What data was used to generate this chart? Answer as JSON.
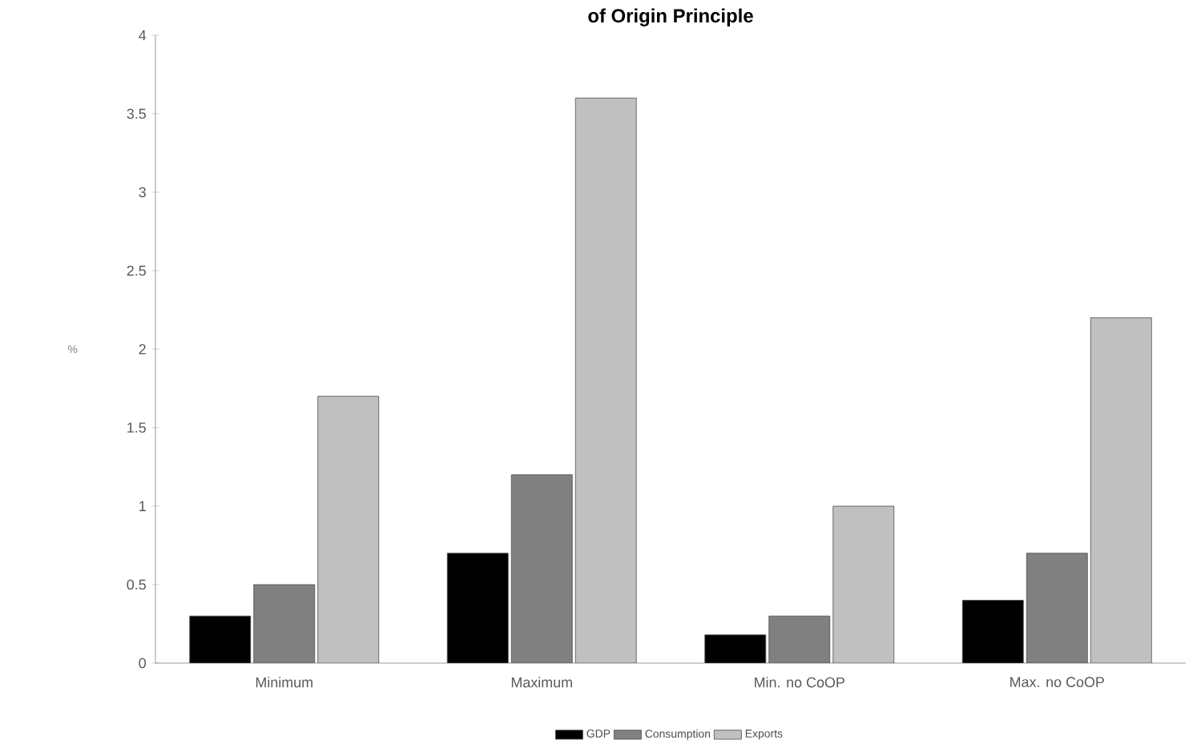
{
  "chart_data": {
    "type": "bar",
    "title": "of Origin Principle",
    "ylabel": "%",
    "categories": [
      "Minimum",
      "Maximum",
      "Min. no CoOP",
      "Max. no CoOP"
    ],
    "series": [
      {
        "name": "GDP",
        "color": "#000000",
        "values": [
          0.3,
          0.7,
          0.18,
          0.4
        ]
      },
      {
        "name": "Consumption",
        "color": "#808080",
        "values": [
          0.5,
          1.2,
          0.3,
          0.7
        ]
      },
      {
        "name": "Exports",
        "color": "#c0c0c0",
        "values": [
          1.7,
          3.6,
          1.0,
          2.2
        ]
      }
    ],
    "ylim": [
      0,
      4
    ],
    "yticks": [
      0,
      0.5,
      1,
      1.5,
      2,
      2.5,
      3,
      3.5,
      4
    ],
    "grid": false,
    "legend": "bottom"
  }
}
